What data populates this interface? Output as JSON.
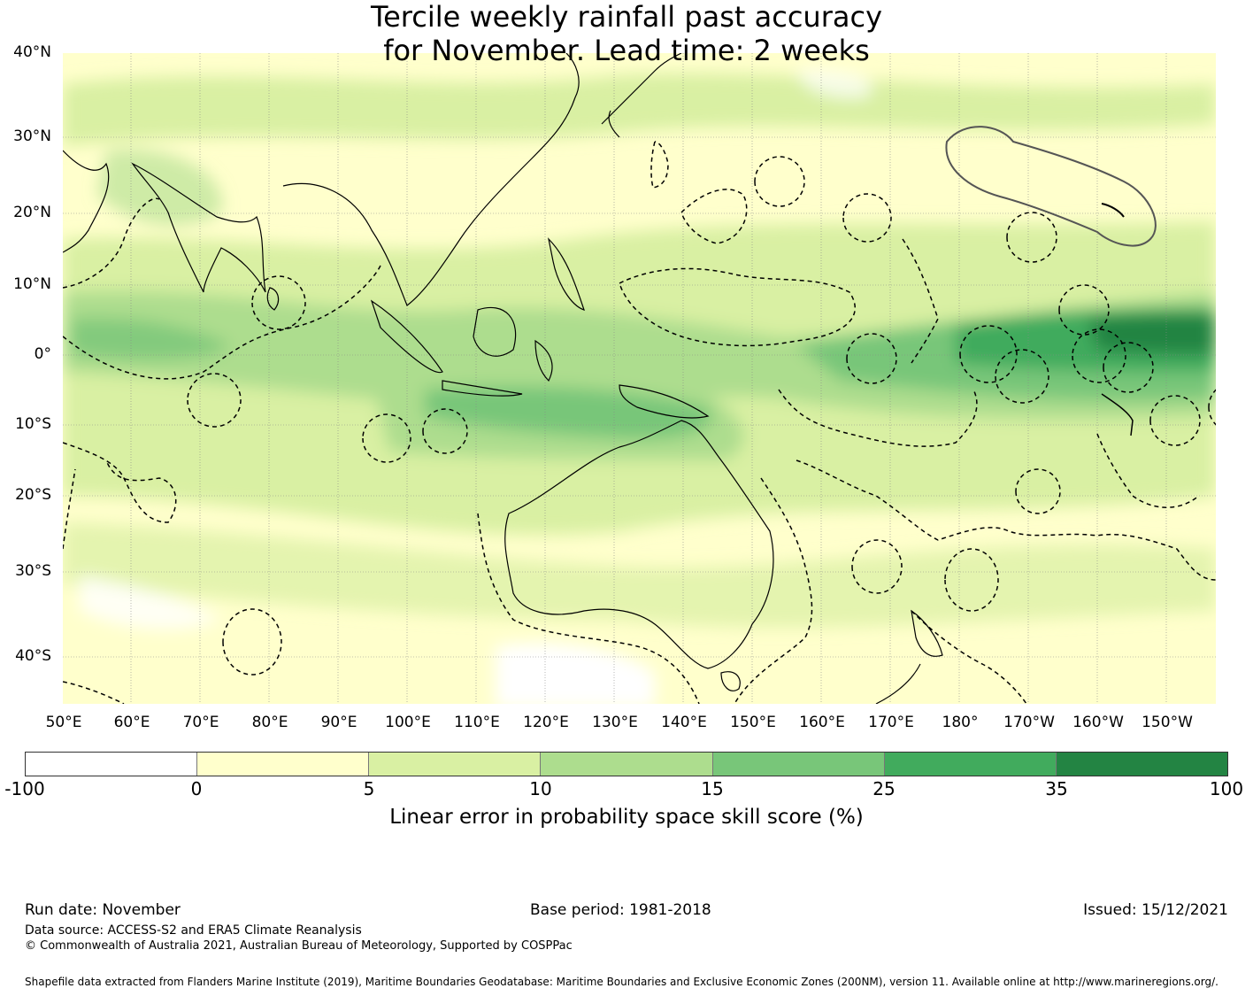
{
  "title": {
    "line1": "Tercile weekly rainfall past accuracy",
    "line2": "for November. Lead time: 2 weeks"
  },
  "map": {
    "lat_labels": [
      "40°N",
      "30°N",
      "20°N",
      "10°N",
      "0°",
      "10°S",
      "20°S",
      "30°S",
      "40°S"
    ],
    "lon_labels": [
      "50°E",
      "60°E",
      "70°E",
      "80°E",
      "90°E",
      "100°E",
      "110°E",
      "120°E",
      "130°E",
      "140°E",
      "150°E",
      "160°E",
      "170°E",
      "180°",
      "170°W",
      "160°W",
      "150°W"
    ],
    "extent": {
      "lon": [
        50,
        217
      ],
      "lat": [
        -46,
        40
      ]
    },
    "gridlines": true
  },
  "colorbar": {
    "ticks": [
      "-100",
      "0",
      "5",
      "10",
      "15",
      "25",
      "35",
      "100"
    ],
    "colors": [
      "#ffffff",
      "#ffffcc",
      "#d9f0a3",
      "#addd8e",
      "#78c679",
      "#41ab5d",
      "#238443"
    ],
    "label": "Linear error in probability space skill score (%)"
  },
  "footer": {
    "run_date": "Run date: November",
    "base_period": "Base period: 1981-2018",
    "issued": "Issued: 15/12/2021",
    "data_source": "Data source: ACCESS-S2 and ERA5 Climate Reanalysis",
    "copyright": "© Commonwealth of Australia 2021, Australian Bureau of Meteorology, Supported by COSPPac",
    "shapefile": "Shapefile data extracted from Flanders Marine Institute (2019), Maritime Boundaries Geodatabase: Maritime Boundaries and Exclusive Economic Zones (200NM), version 11. Available online at http://www.marineregions.org/."
  }
}
